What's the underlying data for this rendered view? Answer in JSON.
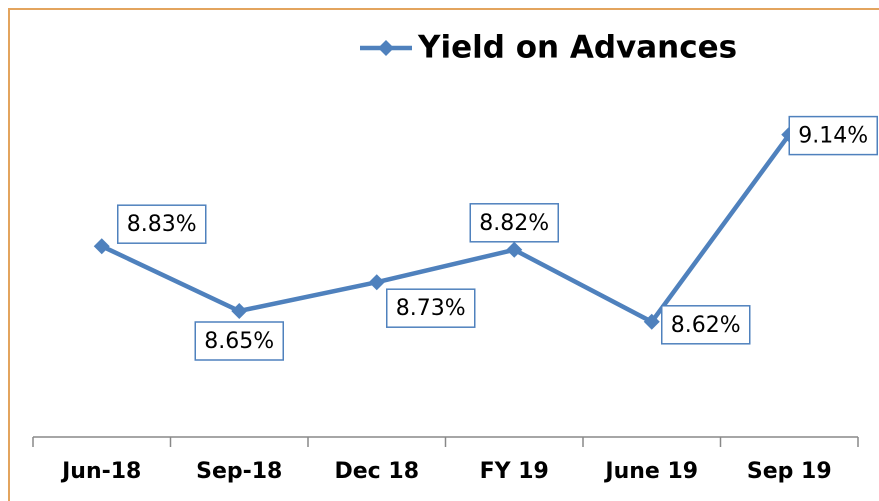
{
  "chart_data": {
    "type": "line",
    "categories": [
      "Jun-18",
      "Sep-18",
      "Dec 18",
      "FY 19",
      "June 19",
      "Sep 19"
    ],
    "series": [
      {
        "name": "Yield on Advances",
        "color": "#4f81bd",
        "values": [
          8.83,
          8.65,
          8.73,
          8.82,
          8.62,
          9.14
        ],
        "value_labels": [
          "8.83%",
          "8.65%",
          "8.73%",
          "8.82%",
          "8.62%",
          "9.14%"
        ]
      }
    ],
    "ylim": [
      8.3,
      9.5
    ],
    "legend": "top"
  }
}
